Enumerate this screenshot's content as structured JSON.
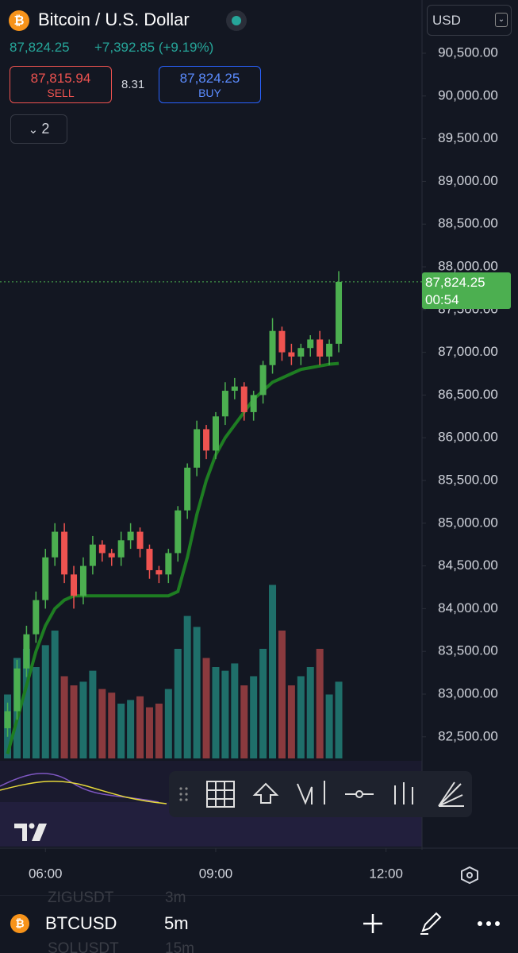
{
  "header": {
    "title": "Bitcoin / U.S. Dollar",
    "price": "87,824.25",
    "change": "+7,392.85 (+9.19%)",
    "sell_price": "87,815.94",
    "sell_label": "SELL",
    "spread": "8.31",
    "buy_price": "87,824.25",
    "buy_label": "BUY",
    "indicators_count": "2",
    "currency": "USD"
  },
  "chart_data": {
    "type": "candlestick",
    "x": [
      "05:20",
      "05:30",
      "05:40",
      "05:50",
      "06:00",
      "06:10",
      "06:20",
      "06:30",
      "06:40",
      "06:50",
      "07:00",
      "07:10",
      "07:20",
      "07:30",
      "07:40",
      "07:50",
      "08:00",
      "08:10",
      "08:20",
      "08:30",
      "08:40",
      "08:50",
      "09:00",
      "09:10",
      "09:20",
      "09:30",
      "09:40",
      "09:50",
      "10:00",
      "10:10",
      "10:20",
      "10:30",
      "10:40",
      "10:50",
      "11:00",
      "11:10"
    ],
    "open": [
      82600,
      82800,
      83300,
      83700,
      84100,
      84600,
      84900,
      84400,
      84150,
      84500,
      84750,
      84650,
      84600,
      84800,
      84900,
      84700,
      84450,
      84400,
      84650,
      85150,
      85650,
      86100,
      85850,
      86250,
      86550,
      86600,
      86300,
      86500,
      86850,
      87250,
      87000,
      86950,
      87050,
      87150,
      86950,
      87100
    ],
    "high": [
      82900,
      83400,
      83800,
      84200,
      84700,
      85000,
      85000,
      84500,
      84600,
      84850,
      84800,
      84700,
      84900,
      85000,
      84950,
      84750,
      84500,
      84700,
      85200,
      85700,
      86200,
      86150,
      86300,
      86650,
      86700,
      86650,
      86550,
      86900,
      87400,
      87300,
      87100,
      87100,
      87200,
      87250,
      87150,
      87950
    ],
    "low": [
      82500,
      82700,
      83200,
      83600,
      84000,
      84500,
      84300,
      84000,
      84050,
      84400,
      84550,
      84500,
      84500,
      84700,
      84600,
      84350,
      84300,
      84300,
      84550,
      85050,
      85550,
      85750,
      85750,
      86150,
      86450,
      86200,
      86200,
      86400,
      86750,
      86900,
      86850,
      86850,
      86950,
      86850,
      86850,
      87000
    ],
    "close": [
      82800,
      83300,
      83700,
      84100,
      84600,
      84900,
      84400,
      84150,
      84500,
      84750,
      84650,
      84600,
      84800,
      84900,
      84700,
      84450,
      84400,
      84650,
      85150,
      85650,
      86100,
      85850,
      86250,
      86550,
      86600,
      86300,
      86500,
      86850,
      87250,
      87000,
      86950,
      87050,
      87150,
      86950,
      87100,
      87824.25
    ],
    "up_color": "#4caf50",
    "down_color": "#ef5350",
    "volume": {
      "values": [
        35,
        55,
        60,
        50,
        62,
        70,
        45,
        40,
        42,
        48,
        38,
        36,
        30,
        32,
        34,
        28,
        30,
        38,
        60,
        78,
        72,
        55,
        50,
        48,
        52,
        40,
        45,
        60,
        95,
        70,
        40,
        45,
        50,
        60,
        35,
        42
      ],
      "vlim": [
        0,
        100
      ],
      "up_color": "#1f6f6a",
      "down_color": "#8a3a3e"
    },
    "trail": {
      "values": [
        82300,
        82700,
        83100,
        83500,
        83800,
        84000,
        84100,
        84150,
        84150,
        84150,
        84150,
        84150,
        84150,
        84150,
        84150,
        84150,
        84150,
        84150,
        84200,
        84600,
        85100,
        85500,
        85800,
        86000,
        86150,
        86300,
        86450,
        86550,
        86650,
        86700,
        86750,
        86800,
        86820,
        86840,
        86860,
        86870
      ],
      "color": "#1e7d22"
    },
    "ylim": [
      82247,
      91123
    ],
    "yticks": [
      {
        "value": 82500,
        "label": "82,500.00"
      },
      {
        "value": 83000,
        "label": "83,000.00"
      },
      {
        "value": 83500,
        "label": "83,500.00"
      },
      {
        "value": 84000,
        "label": "84,000.00"
      },
      {
        "value": 84500,
        "label": "84,500.00"
      },
      {
        "value": 85000,
        "label": "85,000.00"
      },
      {
        "value": 85500,
        "label": "85,500.00"
      },
      {
        "value": 86000,
        "label": "86,000.00"
      },
      {
        "value": 86500,
        "label": "86,500.00"
      },
      {
        "value": 87000,
        "label": "87,000.00"
      },
      {
        "value": 87500,
        "label": "87,500.00"
      },
      {
        "value": 88000,
        "label": "88,000.00"
      },
      {
        "value": 88500,
        "label": "88,500.00"
      },
      {
        "value": 89000,
        "label": "89,000.00"
      },
      {
        "value": 89500,
        "label": "89,500.00"
      },
      {
        "value": 90000,
        "label": "90,000.00"
      },
      {
        "value": 90500,
        "label": "90,500.00"
      }
    ],
    "xlim": [
      "05:12",
      "12:38"
    ],
    "xticks": [
      "06:00",
      "09:00",
      "12:00"
    ],
    "last_price": {
      "value": 87824.25,
      "label": "87,824.25",
      "countdown": "00:54",
      "color": "#4caf50"
    }
  },
  "footer": {
    "symbol": "BTCUSD",
    "interval": "5m",
    "watchlist": [
      [
        "ZIGUSDT",
        "3m"
      ],
      [
        "SOLUSDT",
        "15m"
      ]
    ]
  }
}
